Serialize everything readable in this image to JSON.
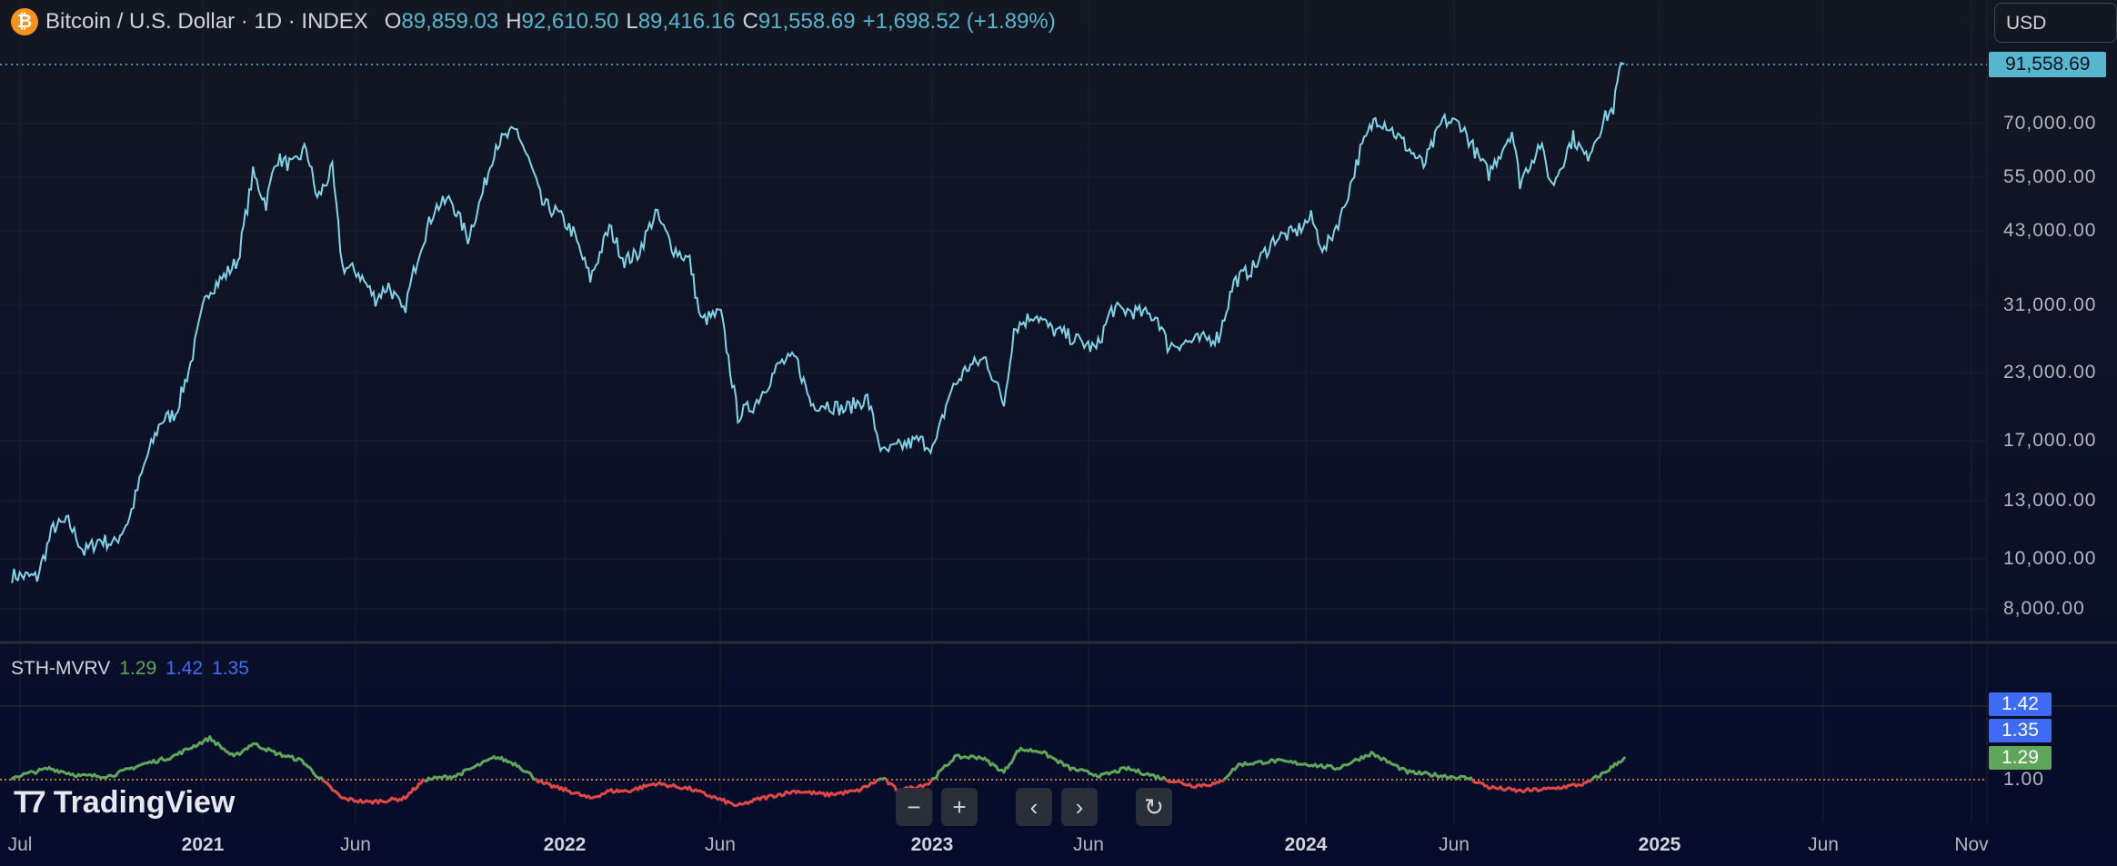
{
  "header": {
    "icon": "bitcoin-icon",
    "title": "Bitcoin / U.S. Dollar · 1D · INDEX",
    "open_label": "O",
    "open": "89,859.03",
    "high_label": "H",
    "high": "92,610.50",
    "low_label": "L",
    "low": "89,416.16",
    "close_label": "C",
    "close": "91,558.69",
    "change": "+1,698.52 (+1.89%)"
  },
  "currency": "USD",
  "price_axis": {
    "last_price": "91,558.69",
    "ticks": [
      "70,000.00",
      "55,000.00",
      "43,000.00",
      "31,000.00",
      "23,000.00",
      "17,000.00",
      "13,000.00",
      "10,000.00",
      "8,000.00"
    ]
  },
  "indicator": {
    "name": "STH-MVRV",
    "v1": "1.29",
    "v2": "1.42",
    "v3": "1.35",
    "axis_tags": [
      "1.42",
      "1.35",
      "1.29"
    ],
    "axis_tick": "1.00"
  },
  "time_axis": [
    "Jul",
    "2021",
    "Jun",
    "2022",
    "Jun",
    "2023",
    "Jun",
    "2024",
    "Jun",
    "2025",
    "Jun",
    "Nov"
  ],
  "logo": "TradingView",
  "controls": {
    "zoom_out": "−",
    "zoom_in": "+",
    "scroll_left": "‹",
    "scroll_right": "›",
    "reset": "↻"
  },
  "colors": {
    "price_line": "#7fd3e6",
    "last_price_tag": "#56b6ce",
    "above_one": "#5ea75a",
    "below_one": "#e04848",
    "baseline": "#f5a623",
    "tag_blue": "#3d6bf5"
  },
  "chart_data": [
    {
      "type": "candlestick",
      "scale": "log",
      "series_closes": [
        [
          "2020-06-25",
          9300
        ],
        [
          "2020-07-20",
          9200
        ],
        [
          "2020-08-05",
          11500
        ],
        [
          "2020-08-20",
          11800
        ],
        [
          "2020-09-05",
          10300
        ],
        [
          "2020-09-20",
          10900
        ],
        [
          "2020-10-05",
          10700
        ],
        [
          "2020-10-20",
          12000
        ],
        [
          "2020-11-05",
          15500
        ],
        [
          "2020-11-20",
          18500
        ],
        [
          "2020-12-05",
          19200
        ],
        [
          "2020-12-20",
          24000
        ],
        [
          "2021-01-05",
          33000
        ],
        [
          "2021-01-20",
          35000
        ],
        [
          "2021-02-05",
          38000
        ],
        [
          "2021-02-20",
          56000
        ],
        [
          "2021-03-05",
          49000
        ],
        [
          "2021-03-15",
          60000
        ],
        [
          "2021-04-01",
          58000
        ],
        [
          "2021-04-14",
          63000
        ],
        [
          "2021-04-25",
          50000
        ],
        [
          "2021-05-10",
          57000
        ],
        [
          "2021-05-20",
          37000
        ],
        [
          "2021-06-05",
          36000
        ],
        [
          "2021-06-22",
          32000
        ],
        [
          "2021-07-05",
          34000
        ],
        [
          "2021-07-20",
          30000
        ],
        [
          "2021-08-05",
          40000
        ],
        [
          "2021-08-20",
          48000
        ],
        [
          "2021-09-05",
          50000
        ],
        [
          "2021-09-22",
          42000
        ],
        [
          "2021-10-05",
          50000
        ],
        [
          "2021-10-20",
          64000
        ],
        [
          "2021-11-10",
          68000
        ],
        [
          "2021-11-25",
          57000
        ],
        [
          "2021-12-05",
          49000
        ],
        [
          "2021-12-20",
          47000
        ],
        [
          "2022-01-05",
          43000
        ],
        [
          "2022-01-22",
          35000
        ],
        [
          "2022-02-10",
          44000
        ],
        [
          "2022-02-25",
          38000
        ],
        [
          "2022-03-10",
          39000
        ],
        [
          "2022-03-28",
          47000
        ],
        [
          "2022-04-15",
          40000
        ],
        [
          "2022-05-01",
          38000
        ],
        [
          "2022-05-12",
          29000
        ],
        [
          "2022-06-01",
          30000
        ],
        [
          "2022-06-18",
          19000
        ],
        [
          "2022-07-05",
          20000
        ],
        [
          "2022-07-30",
          24000
        ],
        [
          "2022-08-15",
          24500
        ],
        [
          "2022-08-30",
          20000
        ],
        [
          "2022-09-15",
          20000
        ],
        [
          "2022-10-01",
          19500
        ],
        [
          "2022-10-25",
          20500
        ],
        [
          "2022-11-09",
          16000
        ],
        [
          "2022-11-25",
          16500
        ],
        [
          "2022-12-15",
          17000
        ],
        [
          "2022-12-31",
          16500
        ],
        [
          "2023-01-15",
          21000
        ],
        [
          "2023-02-01",
          23500
        ],
        [
          "2023-02-20",
          24500
        ],
        [
          "2023-03-10",
          20000
        ],
        [
          "2023-03-20",
          28000
        ],
        [
          "2023-04-10",
          30000
        ],
        [
          "2023-04-25",
          28000
        ],
        [
          "2023-05-15",
          27000
        ],
        [
          "2023-06-10",
          25500
        ],
        [
          "2023-06-25",
          30500
        ],
        [
          "2023-07-15",
          30300
        ],
        [
          "2023-08-10",
          29500
        ],
        [
          "2023-08-20",
          26000
        ],
        [
          "2023-09-15",
          26500
        ],
        [
          "2023-10-10",
          27000
        ],
        [
          "2023-10-25",
          34500
        ],
        [
          "2023-11-15",
          37000
        ],
        [
          "2023-12-05",
          42000
        ],
        [
          "2023-12-25",
          43000
        ],
        [
          "2024-01-10",
          46000
        ],
        [
          "2024-01-23",
          39500
        ],
        [
          "2024-02-10",
          47000
        ],
        [
          "2024-02-28",
          62000
        ],
        [
          "2024-03-14",
          72000
        ],
        [
          "2024-03-25",
          70000
        ],
        [
          "2024-04-15",
          63000
        ],
        [
          "2024-05-01",
          58000
        ],
        [
          "2024-05-20",
          71000
        ],
        [
          "2024-06-07",
          70000
        ],
        [
          "2024-06-25",
          60000
        ],
        [
          "2024-07-05",
          56000
        ],
        [
          "2024-07-28",
          68000
        ],
        [
          "2024-08-05",
          54000
        ],
        [
          "2024-08-25",
          64000
        ],
        [
          "2024-09-06",
          53000
        ],
        [
          "2024-09-27",
          66000
        ],
        [
          "2024-10-10",
          60000
        ],
        [
          "2024-10-29",
          72000
        ],
        [
          "2024-11-06",
          75000
        ],
        [
          "2024-11-12",
          88000
        ],
        [
          "2024-11-17",
          91558.69
        ]
      ]
    },
    {
      "type": "line",
      "name": "STH-MVRV",
      "baseline": 1.0,
      "series": [
        [
          "2020-06-25",
          1.03
        ],
        [
          "2020-08-01",
          1.15
        ],
        [
          "2020-09-01",
          1.05
        ],
        [
          "2020-10-01",
          1.05
        ],
        [
          "2020-11-01",
          1.2
        ],
        [
          "2020-12-01",
          1.3
        ],
        [
          "2021-01-08",
          1.55
        ],
        [
          "2021-02-01",
          1.3
        ],
        [
          "2021-02-20",
          1.48
        ],
        [
          "2021-03-15",
          1.35
        ],
        [
          "2021-04-10",
          1.25
        ],
        [
          "2021-04-25",
          1.05
        ],
        [
          "2021-05-20",
          0.75
        ],
        [
          "2021-06-15",
          0.7
        ],
        [
          "2021-07-20",
          0.75
        ],
        [
          "2021-08-10",
          1.0
        ],
        [
          "2021-09-10",
          1.05
        ],
        [
          "2021-10-20",
          1.3
        ],
        [
          "2021-11-10",
          1.2
        ],
        [
          "2021-12-05",
          0.95
        ],
        [
          "2022-01-01",
          0.85
        ],
        [
          "2022-01-22",
          0.75
        ],
        [
          "2022-02-10",
          0.85
        ],
        [
          "2022-03-01",
          0.85
        ],
        [
          "2022-03-28",
          0.95
        ],
        [
          "2022-05-01",
          0.88
        ],
        [
          "2022-06-18",
          0.65
        ],
        [
          "2022-07-10",
          0.75
        ],
        [
          "2022-08-15",
          0.85
        ],
        [
          "2022-09-15",
          0.8
        ],
        [
          "2022-10-15",
          0.85
        ],
        [
          "2022-11-09",
          1.02
        ],
        [
          "2022-11-25",
          0.85
        ],
        [
          "2022-12-25",
          0.95
        ],
        [
          "2023-01-20",
          1.3
        ],
        [
          "2023-02-15",
          1.3
        ],
        [
          "2023-03-10",
          1.1
        ],
        [
          "2023-03-25",
          1.4
        ],
        [
          "2023-04-15",
          1.38
        ],
        [
          "2023-05-15",
          1.15
        ],
        [
          "2023-06-15",
          1.05
        ],
        [
          "2023-07-10",
          1.15
        ],
        [
          "2023-08-20",
          1.0
        ],
        [
          "2023-09-15",
          0.92
        ],
        [
          "2023-10-10",
          0.95
        ],
        [
          "2023-10-30",
          1.2
        ],
        [
          "2023-12-05",
          1.25
        ],
        [
          "2024-01-10",
          1.2
        ],
        [
          "2024-02-05",
          1.15
        ],
        [
          "2024-03-10",
          1.35
        ],
        [
          "2024-04-15",
          1.1
        ],
        [
          "2024-05-20",
          1.05
        ],
        [
          "2024-06-15",
          1.02
        ],
        [
          "2024-07-05",
          0.9
        ],
        [
          "2024-08-05",
          0.85
        ],
        [
          "2024-09-06",
          0.88
        ],
        [
          "2024-10-10",
          0.95
        ],
        [
          "2024-10-29",
          1.1
        ],
        [
          "2024-11-17",
          1.29
        ]
      ]
    }
  ]
}
